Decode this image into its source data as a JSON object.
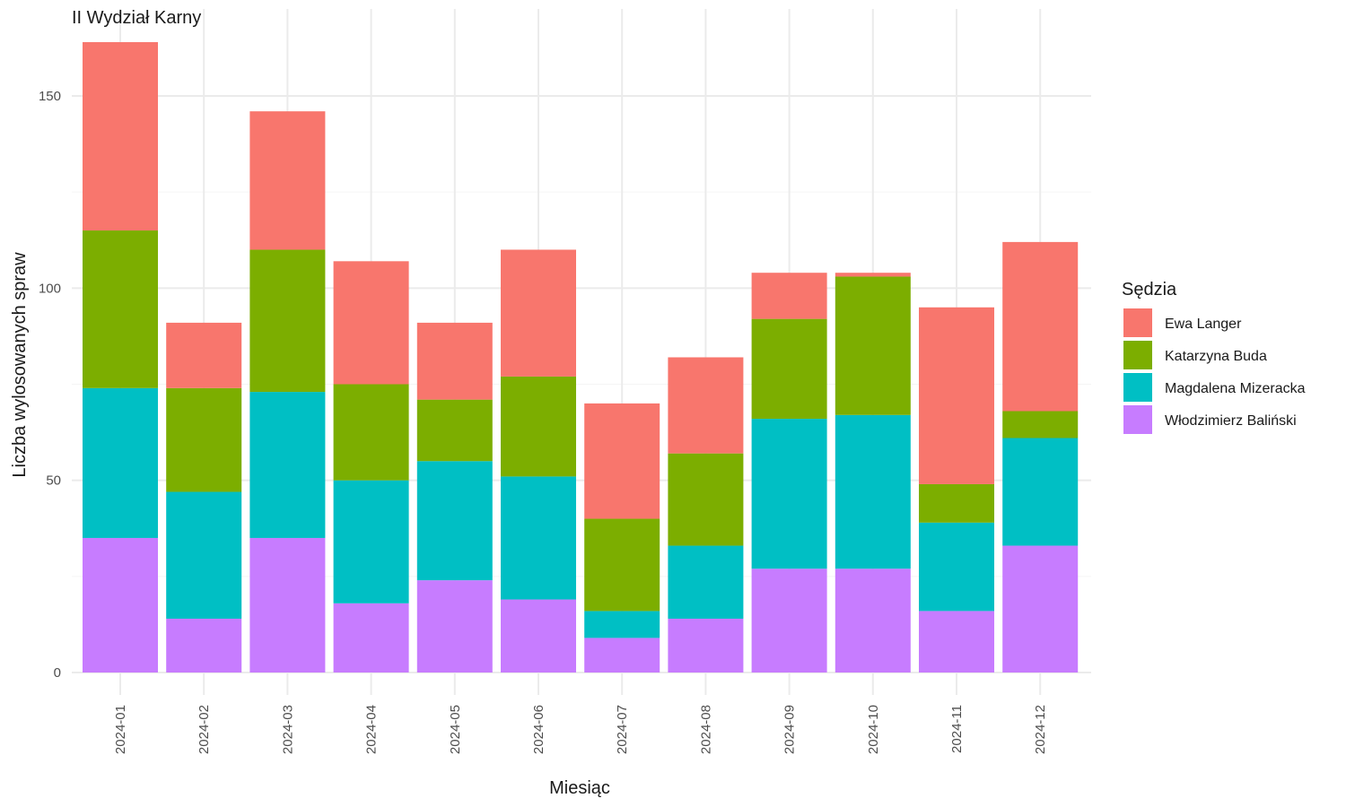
{
  "chart_data": {
    "type": "bar",
    "stacked": true,
    "title": "II Wydział Karny",
    "xlabel": "Miesiąc",
    "ylabel": "Liczba wylosowanych spraw",
    "ylim": [
      0,
      164
    ],
    "yticks": [
      0,
      50,
      100,
      150
    ],
    "grid": true,
    "legend_title": "Sędzia",
    "legend_position": "right",
    "categories": [
      "2024-01",
      "2024-02",
      "2024-03",
      "2024-04",
      "2024-05",
      "2024-06",
      "2024-07",
      "2024-08",
      "2024-09",
      "2024-10",
      "2024-11",
      "2024-12"
    ],
    "series": [
      {
        "name": "Włodzimierz Baliński",
        "color": "#C77CFF",
        "values": [
          35,
          14,
          35,
          18,
          24,
          19,
          9,
          14,
          27,
          27,
          16,
          33
        ]
      },
      {
        "name": "Magdalena Mizeracka",
        "color": "#00BFC4",
        "values": [
          39,
          33,
          38,
          32,
          31,
          32,
          7,
          19,
          39,
          40,
          23,
          28
        ]
      },
      {
        "name": "Katarzyna Buda",
        "color": "#7CAE00",
        "values": [
          41,
          27,
          37,
          25,
          16,
          26,
          24,
          24,
          26,
          36,
          10,
          7
        ]
      },
      {
        "name": "Ewa Langer",
        "color": "#F8766D",
        "values": [
          49,
          17,
          36,
          32,
          20,
          33,
          30,
          25,
          12,
          1,
          46,
          44
        ]
      }
    ],
    "legend_order": [
      "Ewa Langer",
      "Katarzyna Buda",
      "Magdalena Mizeracka",
      "Włodzimierz Baliński"
    ]
  }
}
